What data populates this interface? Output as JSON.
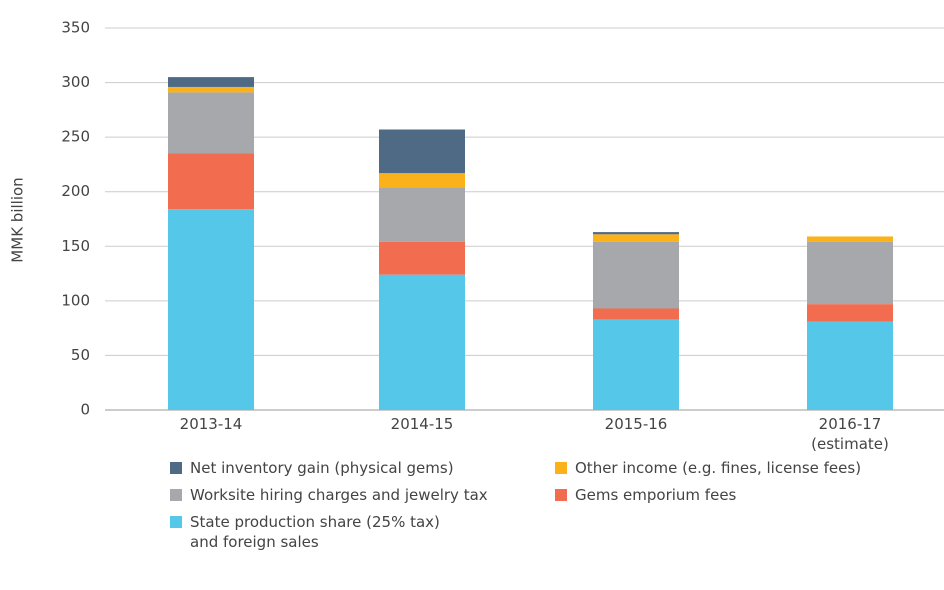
{
  "chart_data": {
    "type": "stacked_bar",
    "y_label": "MMK billion",
    "categories": [
      "2013-14",
      "2014-15",
      "2015-16",
      "2016-17\n(estimate)"
    ],
    "series": [
      {
        "name": "State production share (25% tax)\nand foreign sales",
        "color": "#55c8ea",
        "values": [
          184,
          124,
          83,
          81
        ]
      },
      {
        "name": "Gems emporium fees",
        "color": "#f26d4f",
        "values": [
          51,
          30,
          10,
          16
        ]
      },
      {
        "name": "Worksite hiring charges and jewelry tax",
        "color": "#a7a8ab",
        "values": [
          56,
          50,
          61,
          57
        ]
      },
      {
        "name": "Other income (e.g. fines, license fees)",
        "color": "#fbb21a",
        "values": [
          5,
          13,
          7,
          5
        ]
      },
      {
        "name": "Net inventory gain (physical gems)",
        "color": "#4e6a85",
        "values": [
          9,
          40,
          2,
          0
        ]
      }
    ],
    "ylim": [
      0,
      350
    ],
    "yticks": [
      0,
      50,
      100,
      150,
      200,
      250,
      300,
      350
    ],
    "grid": true
  }
}
